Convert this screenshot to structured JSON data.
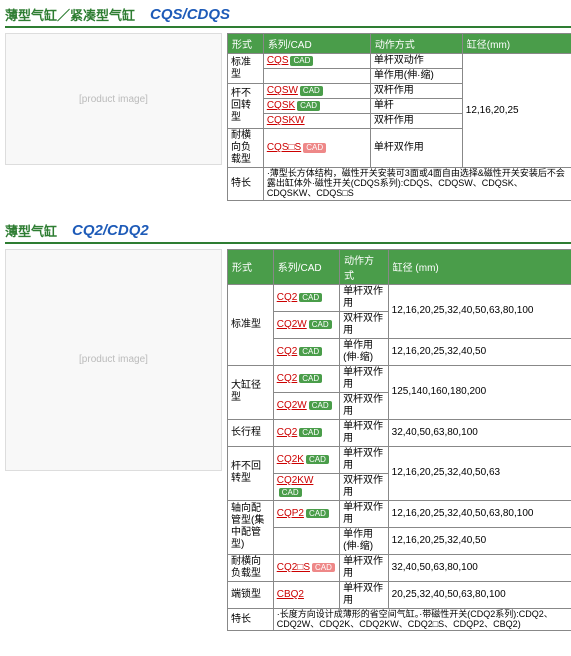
{
  "s1": {
    "t1": "薄型气缸／紧凑型气缸",
    "t2": "CQS/CDQS",
    "h": [
      "形式",
      "系列/CAD",
      "动作方式",
      "缸径(mm)"
    ],
    "bore": "12,16,20,25",
    "r": [
      {
        "f": "标准型",
        "s": "CQS",
        "a": "单杆双动作",
        "rs": 2
      },
      {
        "s": "",
        "a": "单作用(伸·缩)"
      },
      {
        "f": "杆不回转型",
        "s": "CQSW",
        "a": "双杆作用",
        "rs": 3
      },
      {
        "s": "CQSK",
        "a": "单杆"
      },
      {
        "s": "CQSKW",
        "a": "双杆作用"
      },
      {
        "f": "耐横向负载型",
        "s": "CQS□S",
        "a": "单杆双作用",
        "co": 1
      }
    ],
    "feat": "特长",
    "ft": "·薄型长方体结构，磁性开关安装可3面或4面自由选择&磁性开关安装后不会露出缸体外·磁性开关(CDQS系列):CDQS、CDQSW、CDQSK、CDQSKW、CDQS□S"
  },
  "s2": {
    "t1": "薄型气缸",
    "t2": "CQ2/CDQ2",
    "h": [
      "形式",
      "系列/CAD",
      "动作方式",
      "缸径 (mm)"
    ],
    "r": [
      {
        "f": "标准型",
        "s": "CQ2",
        "a": "单杆双作用",
        "b": "12,16,20,25,32,40,50,63,80,100",
        "rs": 3
      },
      {
        "s": "CQ2W",
        "a": "双杆双作用"
      },
      {
        "s": "CQ2",
        "a": "单作用(伸·缩)",
        "b": "12,16,20,25,32,40,50"
      },
      {
        "f": "大缸径型",
        "s": "CQ2",
        "a": "单杆双作用",
        "b": "125,140,160,180,200",
        "rs": 2
      },
      {
        "s": "CQ2W",
        "a": "双杆双作用"
      },
      {
        "f": "长行程",
        "s": "CQ2",
        "a": "单杆双作用",
        "b": "32,40,50,63,80,100"
      },
      {
        "f": "杆不回转型",
        "s": "CQ2K",
        "a": "单杆双作用",
        "b": "12,16,20,25,32,40,50,63",
        "rs": 2
      },
      {
        "s": "CQ2KW",
        "a": "双杆双作用"
      },
      {
        "f": "轴向配管型(集中配管型)",
        "s": "CQP2",
        "a": "单杆双作用",
        "b": "12,16,20,25,32,40,50,63,80,100",
        "rs": 2
      },
      {
        "s": "",
        "a": "单作用(伸·缩)",
        "b": "12,16,20,25,32,40,50"
      },
      {
        "f": "耐横向负载型",
        "s": "CQ2□S",
        "a": "单杆双作用",
        "b": "32,40,50,63,80,100",
        "co": 1
      },
      {
        "f": "端锁型",
        "s": "CBQ2",
        "a": "单杆双作用",
        "b": "20,25,32,40,50,63,80,100"
      }
    ],
    "feat": "特长",
    "ft": "·长度方向设计成薄形的省空间气缸。·带磁性开关(CDQ2系列):CDQ2、CDQ2W、CDQ2K、CDQ2KW、CDQ2□S、CDQP2、CBQ2)"
  }
}
